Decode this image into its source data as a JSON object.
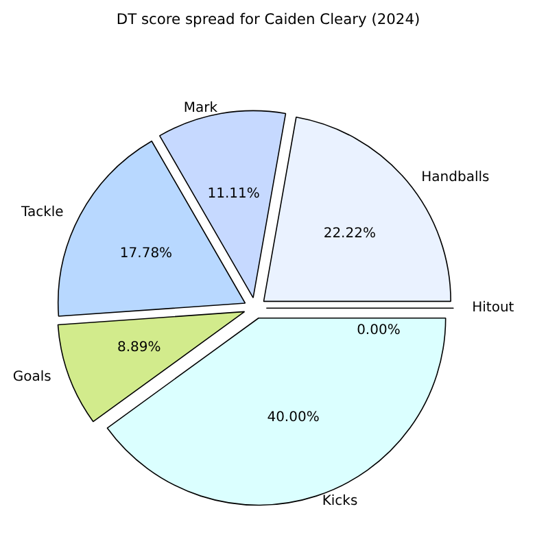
{
  "chart_data": {
    "type": "pie",
    "title": "DT score spread for Caiden Cleary (2024)",
    "categories": [
      "Handballs",
      "Mark",
      "Tackle",
      "Goals",
      "Kicks",
      "Hitout"
    ],
    "values": [
      22.22,
      11.11,
      17.78,
      8.89,
      40.0,
      0.0
    ],
    "colors": [
      "#eaf2ff",
      "#c6d9ff",
      "#b8d8ff",
      "#d2eb8c",
      "#dbffff",
      "#ffffff"
    ],
    "value_labels": [
      "22.22%",
      "11.11%",
      "17.78%",
      "8.89%",
      "40.00%",
      "0.00%"
    ]
  }
}
